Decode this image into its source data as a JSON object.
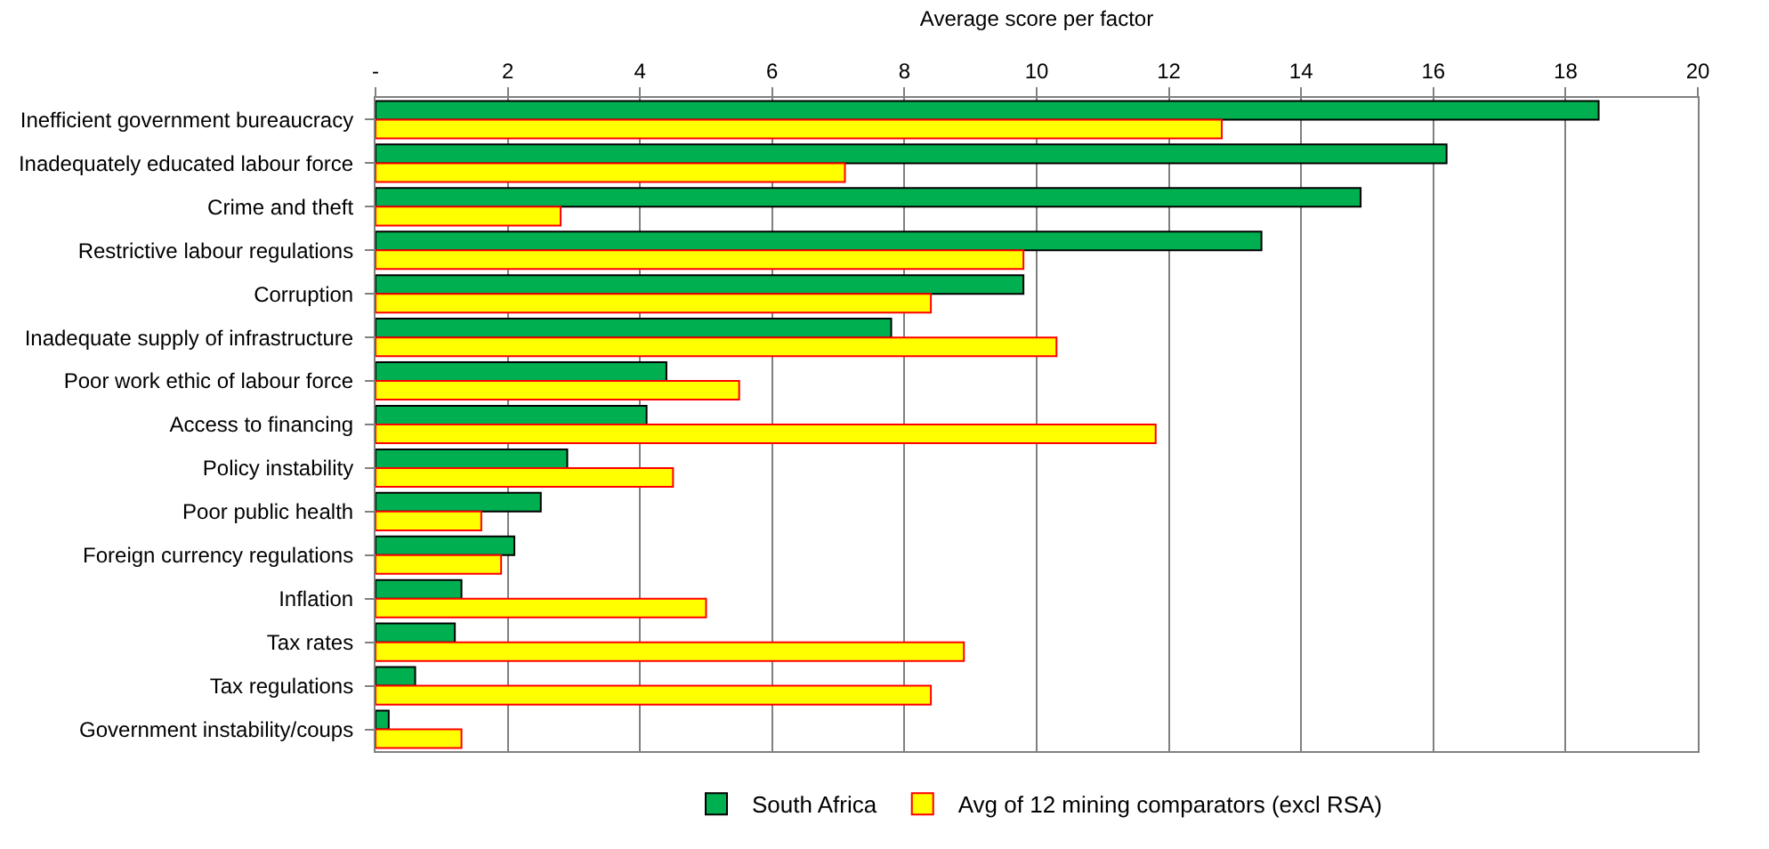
{
  "chart_data": {
    "type": "bar",
    "orientation": "horizontal",
    "xlabel": "Average score per factor",
    "categories": [
      "Inefficient government bureaucracy",
      "Inadequately educated labour force",
      "Crime and theft",
      "Restrictive labour regulations",
      "Corruption",
      "Inadequate supply of infrastructure",
      "Poor work ethic of labour force",
      "Access to financing",
      "Policy instability",
      "Poor public health",
      "Foreign currency regulations",
      "Inflation",
      "Tax rates",
      "Tax regulations",
      "Government instability/coups"
    ],
    "series": [
      {
        "name": "South Africa",
        "color": "#00b050",
        "values": [
          18.5,
          16.2,
          14.9,
          13.4,
          9.8,
          7.8,
          4.4,
          4.1,
          2.9,
          2.5,
          2.1,
          1.3,
          1.2,
          0.6,
          0.2
        ]
      },
      {
        "name": "Avg of 12 mining comparators (excl RSA)",
        "color": "#ffff00",
        "values": [
          12.8,
          7.1,
          2.8,
          9.8,
          8.4,
          10.3,
          5.5,
          11.8,
          4.5,
          1.6,
          1.9,
          5.0,
          8.9,
          8.4,
          1.3
        ]
      }
    ],
    "xlim": [
      0,
      20
    ],
    "xticks": [
      {
        "value": 0,
        "label": "-"
      },
      2,
      4,
      6,
      8,
      10,
      12,
      14,
      16,
      18,
      20
    ],
    "grid": "x",
    "legend": "bottom"
  }
}
